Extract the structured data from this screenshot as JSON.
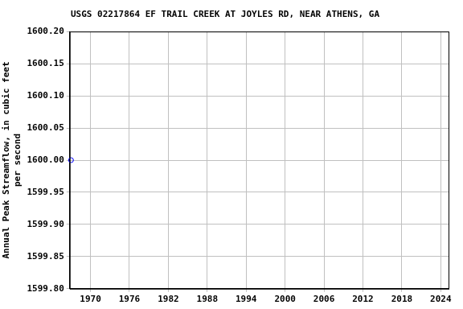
{
  "chart_data": {
    "type": "scatter",
    "title": "USGS 02217864 EF TRAIL CREEK AT JOYLES RD, NEAR ATHENS, GA",
    "ylabel": [
      "Annual Peak Streamflow, in cubic feet",
      "per second"
    ],
    "x": [
      1967
    ],
    "values": [
      1600
    ],
    "color": "#0000ff",
    "marker": "hollow_circle",
    "xlim": [
      1966.8,
      2025.2
    ],
    "xticks": [
      1970,
      1976,
      1982,
      1988,
      1994,
      2000,
      2006,
      2012,
      2018,
      2024
    ],
    "ylim": [
      1599.8,
      1600.2
    ],
    "yticks": [
      {
        "value": 1599.8,
        "label": "1599.80"
      },
      {
        "value": 1599.85,
        "label": "1599.85"
      },
      {
        "value": 1599.9,
        "label": "1599.90"
      },
      {
        "value": 1599.95,
        "label": "1599.95"
      },
      {
        "value": 1600,
        "label": "1600.00"
      },
      {
        "value": 1600.05,
        "label": "1600.05"
      },
      {
        "value": 1600.1,
        "label": "1600.10"
      },
      {
        "value": 1600.15,
        "label": "1600.15"
      },
      {
        "value": 1600.2,
        "label": "1600.20"
      }
    ],
    "grid": true
  }
}
